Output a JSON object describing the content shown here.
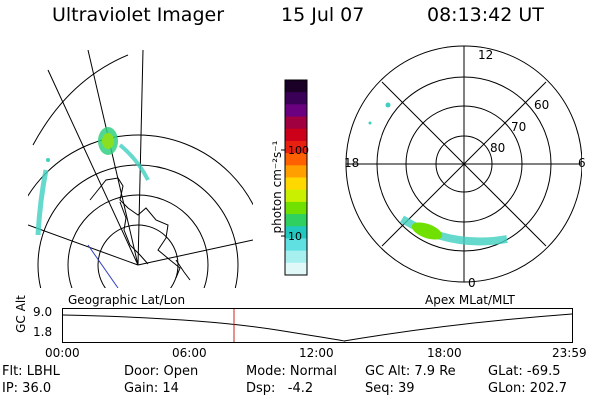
{
  "header": {
    "title": "Ultraviolet Imager",
    "date": "15 Jul 07",
    "time": "08:13:42 UT"
  },
  "geo_map": {
    "caption": "Geographic Lat/Lon"
  },
  "colorbar": {
    "title": "photon cm⁻²s⁻¹",
    "scale": "log",
    "ticks": [
      "100",
      "10"
    ],
    "colors": [
      "#1a0026",
      "#3a0058",
      "#6a0080",
      "#a00040",
      "#cc0018",
      "#e82010",
      "#ff6000",
      "#ffa000",
      "#ffd800",
      "#c8f000",
      "#70e000",
      "#30d060",
      "#20c8c0",
      "#60e0e0",
      "#a8f0f0",
      "#e0f8f8"
    ]
  },
  "polar_plot": {
    "caption": "Apex MLat/MLT",
    "mlt_labels": [
      "12",
      "18",
      "6",
      "0"
    ],
    "mlat_labels": [
      "60",
      "70",
      "80"
    ]
  },
  "altitude_panel": {
    "ylabel": "GC Alt",
    "yticks": [
      "9.0",
      "1.8"
    ],
    "xticks": [
      "00:00",
      "06:00",
      "12:00",
      "18:00",
      "23:59"
    ]
  },
  "info": {
    "filter": "Flt: LBHL",
    "door": "Door: Open",
    "mode": "Mode: Normal",
    "gc_alt": "GC Alt: 7.9 Re",
    "glat": "GLat: -69.5",
    "ip": "IP: 36.0",
    "gain": "Gain: 14",
    "dsp": "Dsp:   -4.2",
    "seq": "Seq: 39",
    "glon": "GLon: 202.7"
  },
  "colors": {
    "marker": "#cc2020",
    "foreground": "#000000",
    "background": "#ffffff"
  }
}
